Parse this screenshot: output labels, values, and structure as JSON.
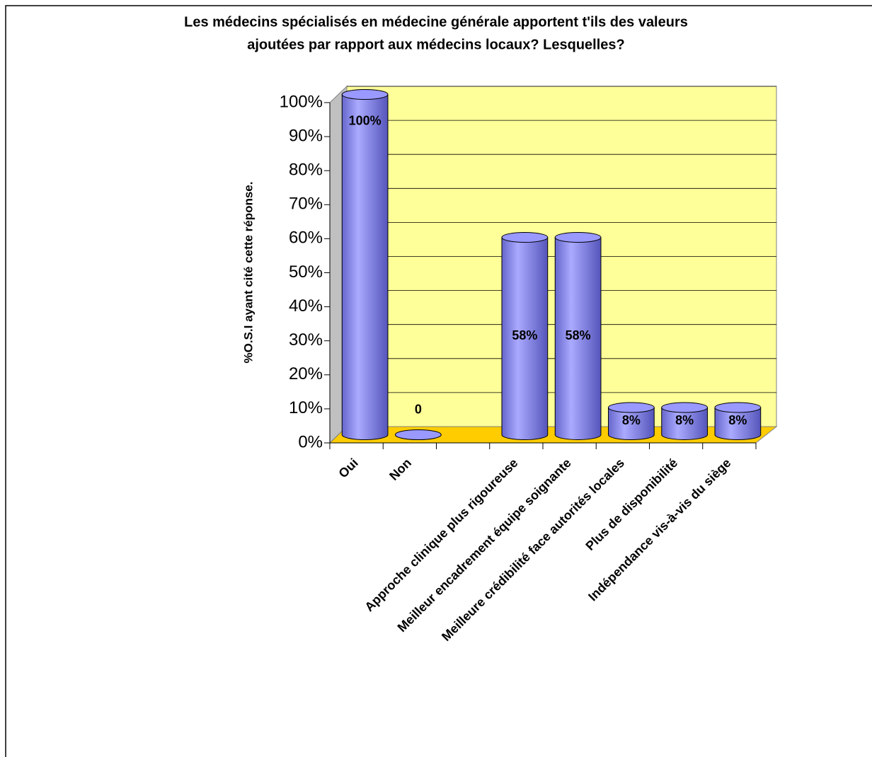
{
  "chart_data": {
    "type": "bar",
    "title": [
      "Les médecins spécialisés en médecine générale apportent t'ils des valeurs",
      "ajoutées par rapport aux médecins locaux? Lesquelles?"
    ],
    "ylabel": "%O.S.I ayant cité cette réponse.",
    "categories": [
      "Oui",
      "Non",
      null,
      "Approche clinique plus rigoureuse",
      "Meilleur encadrement équipe soignante",
      "Meilleure crédibilité face autorités locales",
      "Plus de disponibilité",
      "Indépendance vis-à-vis du siège"
    ],
    "values": [
      100,
      0,
      null,
      58,
      58,
      8,
      8,
      8
    ],
    "value_labels": [
      "100%",
      "0",
      null,
      "58%",
      "58%",
      "8%",
      "8%",
      "8%"
    ],
    "color": "#9999ff",
    "ylim": [
      0,
      100
    ],
    "yticks": [
      {
        "value": 0,
        "label": "0%"
      },
      {
        "value": 10,
        "label": "10%"
      },
      {
        "value": 20,
        "label": "20%"
      },
      {
        "value": 30,
        "label": "30%"
      },
      {
        "value": 40,
        "label": "40%"
      },
      {
        "value": 50,
        "label": "50%"
      },
      {
        "value": 60,
        "label": "60%"
      },
      {
        "value": 70,
        "label": "70%"
      },
      {
        "value": 80,
        "label": "80%"
      },
      {
        "value": 90,
        "label": "90%"
      },
      {
        "value": 100,
        "label": "100%"
      }
    ],
    "grid": true
  }
}
